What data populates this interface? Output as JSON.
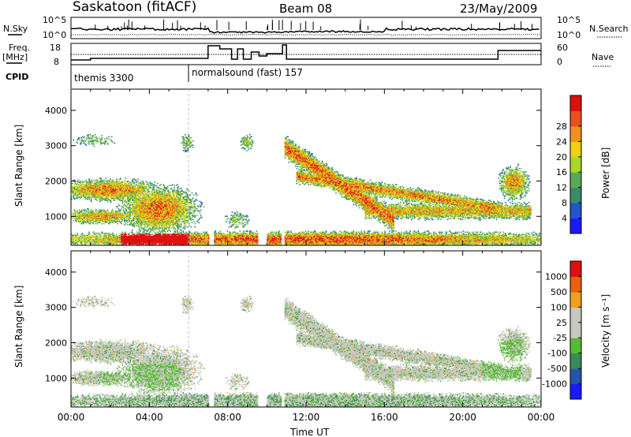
{
  "header": {
    "station": "Saskatoon (fitACF)",
    "beam": "Beam 08",
    "date": "23/May/2009"
  },
  "panels": {
    "nsky_label": "N.Sky",
    "freq_label_line1": "Freq.",
    "freq_label_line2": "[MHz]",
    "cpid_label": "CPID",
    "nsearch_label": "N.Search",
    "nave_label": "Nave",
    "nsky_ticks": [
      "10^5",
      "10^0"
    ],
    "nsearch_ticks": [
      "10^5",
      "10^0"
    ],
    "freq_ticks": [
      "18",
      "8"
    ],
    "nave_ticks": [
      "60",
      "0"
    ]
  },
  "cpid_entries": [
    {
      "label": "themis 3300",
      "start_h": 0
    },
    {
      "label": "normalsound (fast) 157",
      "start_h": 6.0
    }
  ],
  "colors": {
    "power_scale": [
      "#1a1aff",
      "#2255cc",
      "#3a8a6a",
      "#58a858",
      "#a8d828",
      "#f0d010",
      "#f09020",
      "#e85020",
      "#e01010"
    ],
    "velocity_scale": [
      "#1a1aff",
      "#2255aa",
      "#3a8a5a",
      "#55bb33",
      "#c8c8c0",
      "#c8c8c0",
      "#f0a020",
      "#e86010",
      "#e01010"
    ]
  },
  "chart_data": [
    {
      "type": "heatmap",
      "title": "Power",
      "ylabel": "Slant Range [km]",
      "colorbar_label": "Power [dB]",
      "colorbar_ticks": [
        "4",
        "8",
        "12",
        "16",
        "20",
        "24",
        "28"
      ],
      "y_ticks": [
        "1000",
        "2000",
        "3000",
        "4000"
      ],
      "ylim": [
        180,
        4600
      ],
      "xlim": [
        0,
        24
      ]
    },
    {
      "type": "heatmap",
      "title": "Velocity",
      "ylabel": "Slant Range [km]",
      "xlabel": "Time UT",
      "colorbar_label": "Velocity [m s⁻¹]",
      "colorbar_ticks": [
        "-1000",
        "-500",
        "-100",
        "-25",
        "25",
        "100",
        "500",
        "1000"
      ],
      "x_ticks": [
        "00:00",
        "04:00",
        "08:00",
        "12:00",
        "16:00",
        "20:00",
        "00:00"
      ],
      "y_ticks": [
        "1000",
        "2000",
        "3000",
        "4000"
      ],
      "ylim": [
        180,
        4600
      ],
      "xlim": [
        0,
        24
      ]
    }
  ]
}
